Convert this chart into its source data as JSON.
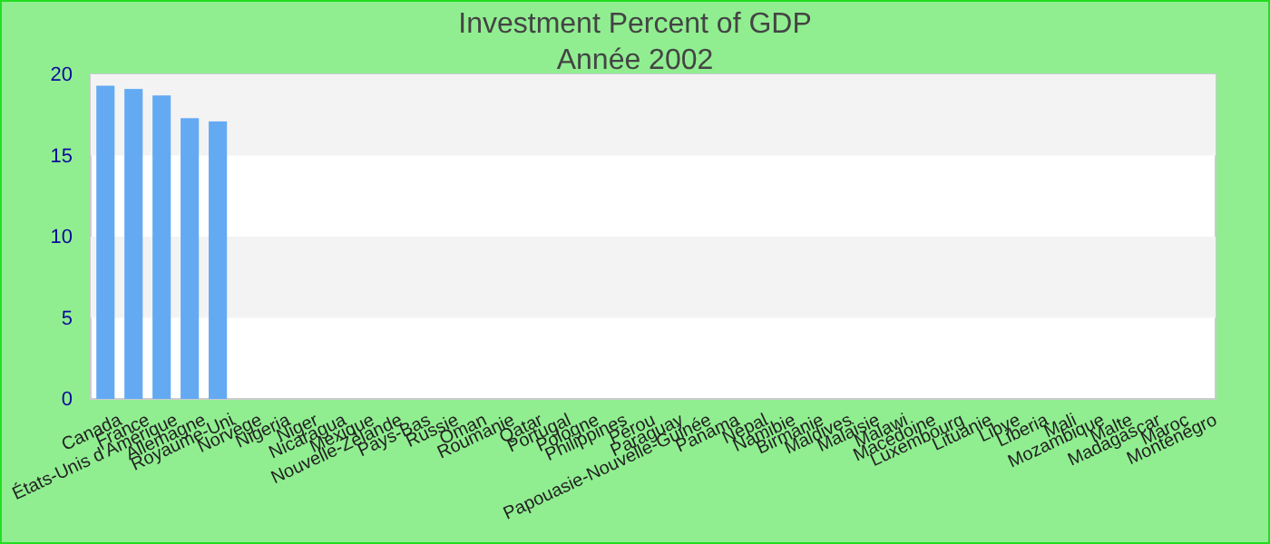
{
  "chart_data": {
    "type": "bar",
    "title": "Investment  Percent of GDP",
    "subtitle": "Année 2002",
    "categories": [
      "Canada",
      "France",
      "États-Unis d'Amérique",
      "Allemagne",
      "Royaume-Uni",
      "Norvège",
      "Nigeria",
      "Niger",
      "Nicaragua",
      "Mexique",
      "Nouvelle-Zélande",
      "Pays-Bas",
      "Russie",
      "Oman",
      "Roumanie",
      "Qatar",
      "Portugal",
      "Pologne",
      "Philippines",
      "Pérou",
      "Paraguay",
      "Papouasie-Nouvelle-Guinée",
      "Panama",
      "Népal",
      "Namibie",
      "Birmanie",
      "Maldives",
      "Malaisie",
      "Malawi",
      "Macédoine",
      "Luxembourg",
      "Lituanie",
      "Libye",
      "Liberia",
      "Mali",
      "Mozambique",
      "Malte",
      "Madagascar",
      "Maroc",
      "Monténégro"
    ],
    "values": [
      19.3,
      19.1,
      18.7,
      17.3,
      17.1,
      null,
      null,
      null,
      null,
      null,
      null,
      null,
      null,
      null,
      null,
      null,
      null,
      null,
      null,
      null,
      null,
      null,
      null,
      null,
      null,
      null,
      null,
      null,
      null,
      null,
      null,
      null,
      null,
      null,
      null,
      null,
      null,
      null,
      null,
      null
    ],
    "color": "#63aaf3",
    "ylim": [
      0,
      20
    ],
    "yticks": [
      0,
      5,
      10,
      15,
      20
    ],
    "bands": [
      {
        "axis": "y",
        "from": 5,
        "to": 10,
        "color": "#f3f3f3"
      },
      {
        "axis": "y",
        "from": 15,
        "to": 20,
        "color": "#f3f3f3"
      }
    ]
  }
}
